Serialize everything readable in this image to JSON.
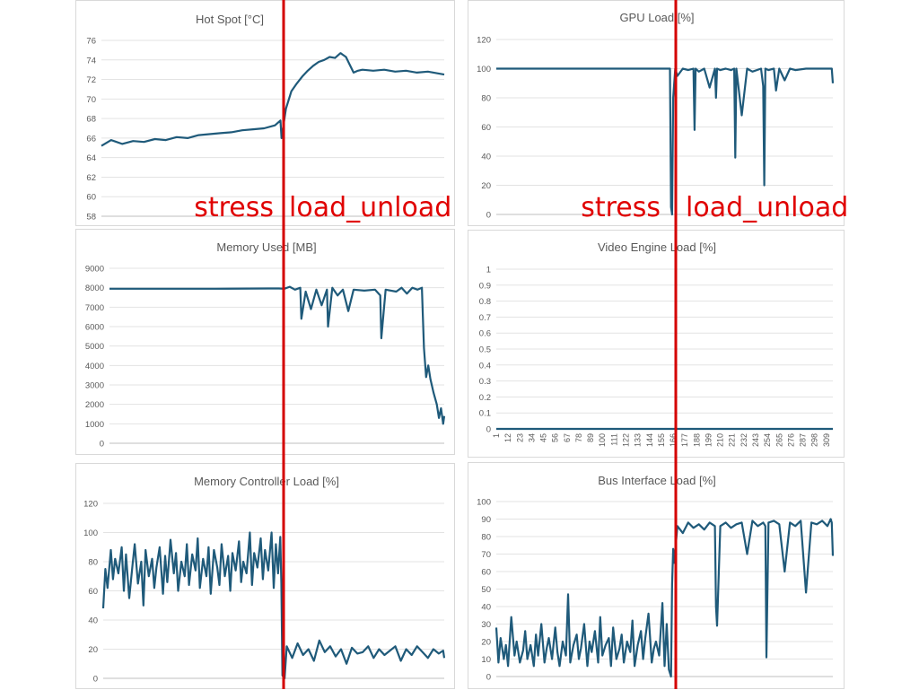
{
  "annotations": {
    "left_stress": "stress",
    "left_load_unload": "load_unload",
    "right_stress": "stress",
    "right_load_unload": "load_unload",
    "color": "#e00000"
  },
  "chart_data": [
    {
      "id": "hotspot",
      "type": "line",
      "title": "Hot Spot [°C]",
      "ylim": [
        58,
        76
      ],
      "yticks": [
        58,
        60,
        62,
        64,
        66,
        68,
        70,
        72,
        74,
        76
      ],
      "xlim": [
        1,
        315
      ],
      "grid": true,
      "series": [
        {
          "color": "#1f5a7a",
          "x": [
            1,
            10,
            20,
            30,
            40,
            50,
            60,
            70,
            80,
            90,
            100,
            110,
            120,
            130,
            140,
            150,
            160,
            165,
            166,
            170,
            175,
            180,
            185,
            190,
            195,
            200,
            205,
            210,
            215,
            220,
            225,
            228,
            232,
            236,
            240,
            250,
            260,
            270,
            280,
            290,
            300,
            315
          ],
          "y": [
            65.2,
            65.8,
            65.4,
            65.7,
            65.6,
            65.9,
            65.8,
            66.1,
            66.0,
            66.3,
            66.4,
            66.5,
            66.6,
            66.8,
            66.9,
            67.0,
            67.3,
            67.8,
            66.0,
            69.0,
            70.8,
            71.6,
            72.3,
            72.9,
            73.4,
            73.8,
            74.0,
            74.3,
            74.2,
            74.7,
            74.3,
            73.6,
            72.7,
            72.9,
            73.0,
            72.9,
            73.0,
            72.8,
            72.9,
            72.7,
            72.8,
            72.5
          ]
        }
      ]
    },
    {
      "id": "gpuload",
      "type": "line",
      "title": "GPU Load [%]",
      "ylim": [
        0,
        120
      ],
      "yticks": [
        0,
        20,
        40,
        60,
        80,
        100,
        120
      ],
      "xlim": [
        1,
        315
      ],
      "grid": true,
      "series": [
        {
          "color": "#1f5a7a",
          "x": [
            1,
            50,
            100,
            150,
            162,
            163,
            164,
            165,
            166,
            168,
            170,
            175,
            180,
            185,
            186,
            187,
            190,
            195,
            200,
            205,
            206,
            207,
            210,
            215,
            220,
            223,
            224,
            225,
            230,
            235,
            240,
            248,
            250,
            251,
            252,
            255,
            260,
            262,
            265,
            270,
            275,
            280,
            290,
            300,
            310,
            314,
            315
          ],
          "y": [
            100,
            100,
            100,
            100,
            100,
            100,
            5,
            0,
            80,
            100,
            95,
            100,
            99,
            100,
            58,
            100,
            98,
            100,
            87,
            100,
            80,
            100,
            99,
            100,
            99,
            100,
            39,
            100,
            68,
            100,
            98,
            100,
            88,
            20,
            100,
            99,
            100,
            85,
            100,
            92,
            100,
            99,
            100,
            100,
            100,
            100,
            90
          ]
        }
      ]
    },
    {
      "id": "memused",
      "type": "line",
      "title": "Memory Used [MB]",
      "ylim": [
        0,
        9000
      ],
      "yticks": [
        0,
        1000,
        2000,
        3000,
        4000,
        5000,
        6000,
        7000,
        8000,
        9000
      ],
      "xlim": [
        1,
        315
      ],
      "grid": true,
      "series": [
        {
          "color": "#1f5a7a",
          "x": [
            1,
            50,
            100,
            150,
            160,
            165,
            170,
            175,
            180,
            181,
            185,
            190,
            195,
            200,
            205,
            206,
            210,
            215,
            220,
            225,
            230,
            240,
            250,
            255,
            256,
            260,
            270,
            275,
            280,
            285,
            290,
            294,
            295,
            296,
            298,
            300,
            302,
            305,
            308,
            310,
            312,
            314,
            315
          ],
          "y": [
            7950,
            7950,
            7950,
            7960,
            7960,
            7950,
            8050,
            7900,
            8000,
            6400,
            7800,
            6900,
            7900,
            7100,
            7900,
            6000,
            8000,
            7600,
            7900,
            6800,
            7900,
            7850,
            7900,
            7600,
            5400,
            7900,
            7800,
            8000,
            7700,
            8000,
            7900,
            8000,
            6500,
            4900,
            3400,
            4000,
            3300,
            2600,
            2000,
            1300,
            1800,
            1000,
            1400
          ]
        }
      ]
    },
    {
      "id": "videoengine",
      "type": "line",
      "title": "Video Engine Load [%]",
      "ylim": [
        0,
        1
      ],
      "yticks": [
        0,
        0.1,
        0.2,
        0.3,
        0.4,
        0.5,
        0.6,
        0.7,
        0.8,
        0.9,
        1
      ],
      "xlim": [
        1,
        315
      ],
      "xticks": [
        1,
        12,
        23,
        34,
        45,
        56,
        67,
        78,
        89,
        100,
        111,
        122,
        133,
        144,
        155,
        166,
        177,
        188,
        199,
        210,
        221,
        232,
        243,
        254,
        265,
        276,
        287,
        298,
        309
      ],
      "grid": true,
      "series": [
        {
          "color": "#1f5a7a",
          "x": [
            1,
            315
          ],
          "y": [
            0,
            0
          ]
        }
      ]
    },
    {
      "id": "memctrl",
      "type": "line",
      "title": "Memory Controller Load [%]",
      "ylim": [
        0,
        120
      ],
      "yticks": [
        0,
        20,
        40,
        60,
        80,
        100,
        120
      ],
      "xlim": [
        1,
        315
      ],
      "grid": true,
      "series": [
        {
          "color": "#1f5a7a",
          "x": [
            1,
            3,
            5,
            8,
            10,
            12,
            15,
            18,
            20,
            22,
            25,
            28,
            30,
            33,
            36,
            38,
            40,
            43,
            46,
            48,
            50,
            53,
            56,
            58,
            60,
            63,
            66,
            68,
            70,
            73,
            76,
            78,
            80,
            83,
            86,
            88,
            90,
            93,
            96,
            98,
            100,
            103,
            106,
            108,
            110,
            113,
            116,
            118,
            120,
            123,
            126,
            128,
            130,
            133,
            136,
            138,
            140,
            143,
            146,
            148,
            150,
            153,
            156,
            158,
            160,
            162,
            164,
            165,
            166,
            168,
            170,
            175,
            180,
            185,
            190,
            195,
            200,
            205,
            210,
            215,
            220,
            225,
            230,
            235,
            240,
            245,
            250,
            255,
            260,
            265,
            270,
            275,
            280,
            285,
            290,
            295,
            300,
            305,
            310,
            314,
            315
          ],
          "y": [
            48,
            75,
            62,
            88,
            68,
            82,
            72,
            90,
            60,
            85,
            55,
            78,
            92,
            65,
            80,
            50,
            88,
            70,
            82,
            62,
            76,
            90,
            58,
            84,
            66,
            95,
            72,
            86,
            60,
            80,
            70,
            92,
            64,
            85,
            74,
            96,
            62,
            82,
            70,
            90,
            58,
            88,
            76,
            64,
            92,
            70,
            84,
            60,
            86,
            74,
            94,
            66,
            80,
            72,
            100,
            64,
            86,
            76,
            96,
            68,
            88,
            74,
            100,
            62,
            92,
            72,
            97,
            65,
            2,
            0,
            22,
            14,
            24,
            16,
            20,
            12,
            26,
            18,
            22,
            15,
            20,
            10,
            21,
            17,
            18,
            22,
            14,
            20,
            16,
            19,
            22,
            12,
            20,
            16,
            22,
            18,
            14,
            20,
            17,
            19,
            14
          ]
        }
      ]
    },
    {
      "id": "businterface",
      "type": "line",
      "title": "Bus Interface Load [%]",
      "ylim": [
        0,
        100
      ],
      "yticks": [
        0,
        10,
        20,
        30,
        40,
        50,
        60,
        70,
        80,
        90,
        100
      ],
      "xlim": [
        1,
        315
      ],
      "grid": true,
      "series": [
        {
          "color": "#1f5a7a",
          "x": [
            1,
            3,
            5,
            8,
            10,
            12,
            15,
            18,
            20,
            23,
            26,
            28,
            30,
            33,
            36,
            38,
            40,
            43,
            46,
            48,
            50,
            53,
            56,
            58,
            60,
            63,
            66,
            68,
            70,
            73,
            76,
            78,
            80,
            83,
            86,
            88,
            90,
            93,
            96,
            98,
            100,
            103,
            106,
            108,
            110,
            113,
            116,
            118,
            120,
            123,
            126,
            128,
            130,
            133,
            136,
            138,
            140,
            143,
            146,
            148,
            150,
            153,
            156,
            158,
            160,
            162,
            164,
            165,
            166,
            167,
            170,
            175,
            180,
            185,
            190,
            195,
            200,
            205,
            206,
            207,
            210,
            215,
            220,
            225,
            230,
            235,
            240,
            245,
            250,
            252,
            253,
            255,
            260,
            265,
            270,
            275,
            280,
            285,
            290,
            295,
            300,
            305,
            310,
            313,
            314,
            315
          ],
          "y": [
            28,
            8,
            22,
            10,
            18,
            6,
            34,
            12,
            20,
            8,
            15,
            26,
            10,
            18,
            6,
            24,
            12,
            30,
            8,
            16,
            22,
            10,
            28,
            14,
            6,
            20,
            12,
            47,
            8,
            18,
            24,
            10,
            16,
            30,
            6,
            20,
            14,
            26,
            8,
            34,
            12,
            18,
            22,
            6,
            28,
            10,
            16,
            24,
            8,
            20,
            14,
            32,
            6,
            18,
            26,
            10,
            22,
            36,
            8,
            16,
            20,
            12,
            42,
            6,
            30,
            4,
            0,
            53,
            73,
            65,
            86,
            82,
            88,
            85,
            87,
            84,
            88,
            86,
            40,
            29,
            86,
            88,
            85,
            87,
            88,
            70,
            89,
            86,
            88,
            86,
            11,
            88,
            89,
            87,
            60,
            88,
            86,
            89,
            48,
            88,
            87,
            89,
            86,
            90,
            88,
            69
          ]
        }
      ]
    }
  ]
}
